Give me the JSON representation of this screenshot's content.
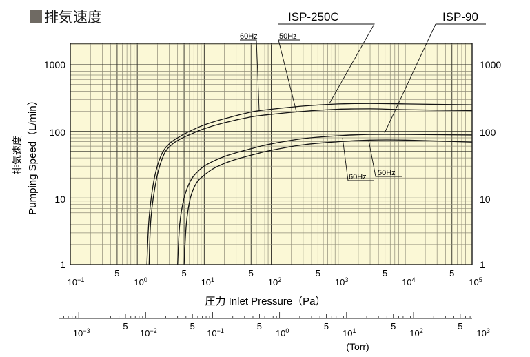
{
  "header": {
    "title": "排気速度",
    "title_icon": "gray-square-bullet"
  },
  "series_labels": {
    "isp250c": "ISP-250C",
    "isp90": "ISP-90",
    "top_60hz": "60Hz",
    "top_50hz": "50Hz",
    "bottom_60hz": "60Hz",
    "bottom_50hz": "50Hz"
  },
  "axes": {
    "y_label_jp": "排気速度",
    "y_label_en": "Pumping Speed（L/min）",
    "x_label": "圧力  Inlet Pressure（Pa）",
    "torr_unit": "(Torr)",
    "y_ticks": [
      "1000",
      "100",
      "10",
      "1"
    ],
    "x_ticks_pa": [
      {
        "base": "10",
        "exp": "−1"
      },
      {
        "base": "10",
        "exp": "0"
      },
      {
        "base": "10",
        "exp": "1"
      },
      {
        "base": "10",
        "exp": "2"
      },
      {
        "base": "10",
        "exp": "3"
      },
      {
        "base": "10",
        "exp": "4"
      },
      {
        "base": "10",
        "exp": "5"
      }
    ],
    "x_ticks_torr": [
      {
        "base": "10",
        "exp": "−3"
      },
      {
        "base": "10",
        "exp": "−2"
      },
      {
        "base": "10",
        "exp": "−1"
      },
      {
        "base": "10",
        "exp": "0"
      },
      {
        "base": "10",
        "exp": "1"
      },
      {
        "base": "10",
        "exp": "2"
      },
      {
        "base": "10",
        "exp": "3"
      }
    ],
    "five_label": "5"
  },
  "colors": {
    "plot_bg": "#fbf8d6",
    "grid_major": "#2b2a24",
    "grid_minor": "#8f8c78",
    "curve": "#141414",
    "title_square": "#6f6a63"
  },
  "chart_data": {
    "type": "line",
    "title": "排気速度",
    "xlabel": "圧力 Inlet Pressure (Pa)",
    "ylabel": "排気速度 Pumping Speed (L/min)",
    "x_scale": "log",
    "y_scale": "log",
    "xlim": [
      0.1,
      100000
    ],
    "ylim": [
      1,
      2100
    ],
    "secondary_x_axis": {
      "label": "(Torr)",
      "range": [
        0.0005,
        1000
      ],
      "ticks": [
        "10^-3",
        "10^-2",
        "10^-1",
        "10^0",
        "10^1",
        "10^2",
        "10^3"
      ]
    },
    "grid": true,
    "series": [
      {
        "name": "ISP-250C 60Hz",
        "x": [
          1.39,
          1.5,
          1.8,
          2.3,
          3.0,
          4.0,
          6.0,
          10,
          20,
          50,
          100,
          300,
          1000,
          3000,
          10000,
          100000
        ],
        "y": [
          1,
          5,
          20,
          45,
          65,
          80,
          100,
          125,
          155,
          195,
          215,
          240,
          258,
          262,
          258,
          250
        ]
      },
      {
        "name": "ISP-250C 50Hz",
        "x": [
          1.5,
          1.6,
          1.95,
          2.5,
          3.2,
          4.2,
          6.5,
          10,
          20,
          50,
          100,
          300,
          1000,
          3000,
          10000,
          100000
        ],
        "y": [
          1,
          5,
          20,
          45,
          62,
          75,
          92,
          110,
          135,
          165,
          180,
          200,
          215,
          218,
          212,
          205
        ]
      },
      {
        "name": "ISP-90 60Hz",
        "x": [
          4.0,
          4.3,
          5.0,
          6.2,
          8.0,
          11,
          20,
          50,
          100,
          300,
          1000,
          3000,
          10000,
          100000
        ],
        "y": [
          1,
          4,
          10,
          18,
          25,
          32,
          42,
          55,
          65,
          78,
          86,
          90,
          90,
          88
        ]
      },
      {
        "name": "ISP-90 50Hz",
        "x": [
          5.0,
          5.4,
          6.2,
          7.7,
          10,
          14,
          25,
          60,
          100,
          300,
          1000,
          3000,
          10000,
          100000
        ],
        "y": [
          1,
          4,
          10,
          17,
          22,
          28,
          36,
          46,
          52,
          63,
          70,
          74,
          74,
          69
        ]
      }
    ],
    "annotations": [
      "ISP-250C",
      "ISP-90",
      "60Hz",
      "50Hz"
    ]
  }
}
